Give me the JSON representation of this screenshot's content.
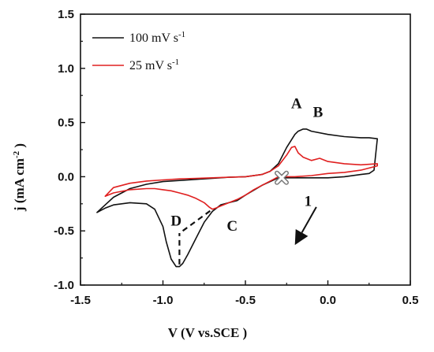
{
  "chart_data": {
    "type": "line",
    "xlabel": "V (V vs.SCE )",
    "ylabel_main": "j (mA cm",
    "ylabel_sup": "-2",
    "ylabel_end": " )",
    "xlim": [
      -1.5,
      0.5
    ],
    "ylim": [
      -1.0,
      1.5
    ],
    "x_ticks": [
      -1.5,
      -1.0,
      -0.5,
      0.0,
      0.5
    ],
    "x_tick_labels": [
      "-1.5",
      "-1.0",
      "-0.5",
      "0.0",
      "0.5"
    ],
    "y_ticks": [
      -1.0,
      -0.5,
      0.0,
      0.5,
      1.0,
      1.5
    ],
    "y_tick_labels": [
      "-1.0",
      "-0.5",
      "0.0",
      "0.5",
      "1.0",
      "1.5"
    ],
    "legend_position": "top-left",
    "series": [
      {
        "name_main": "100 mV s",
        "name_sup": "-1",
        "color": "#111111",
        "x": [
          -0.3,
          -0.4,
          -0.5,
          -0.55,
          -0.6,
          -0.65,
          -0.7,
          -0.75,
          -0.8,
          -0.85,
          -0.88,
          -0.9,
          -0.92,
          -0.95,
          -0.98,
          -1.0,
          -1.05,
          -1.1,
          -1.2,
          -1.3,
          -1.35,
          -1.4,
          -1.35,
          -1.3,
          -1.2,
          -1.1,
          -1.0,
          -0.9,
          -0.8,
          -0.7,
          -0.6,
          -0.5,
          -0.4,
          -0.35,
          -0.3,
          -0.25,
          -0.2,
          -0.18,
          -0.15,
          -0.13,
          -0.1,
          0.0,
          0.1,
          0.2,
          0.25,
          0.3,
          0.28,
          0.25,
          0.2,
          0.1,
          0.0,
          -0.1,
          -0.2,
          -0.3
        ],
        "y": [
          -0.01,
          -0.08,
          -0.17,
          -0.22,
          -0.24,
          -0.26,
          -0.32,
          -0.42,
          -0.57,
          -0.72,
          -0.8,
          -0.83,
          -0.83,
          -0.76,
          -0.6,
          -0.46,
          -0.3,
          -0.25,
          -0.24,
          -0.26,
          -0.29,
          -0.33,
          -0.26,
          -0.19,
          -0.11,
          -0.07,
          -0.045,
          -0.035,
          -0.025,
          -0.015,
          -0.005,
          0.0,
          0.02,
          0.05,
          0.12,
          0.27,
          0.39,
          0.42,
          0.44,
          0.44,
          0.42,
          0.39,
          0.37,
          0.36,
          0.36,
          0.35,
          0.06,
          0.03,
          0.02,
          0.0,
          -0.01,
          -0.01,
          -0.01,
          -0.01
        ]
      },
      {
        "name_main": "25 mV s",
        "name_sup": "-1",
        "color": "#e02020",
        "x": [
          -0.3,
          -0.35,
          -0.4,
          -0.45,
          -0.5,
          -0.55,
          -0.6,
          -0.65,
          -0.68,
          -0.7,
          -0.72,
          -0.75,
          -0.8,
          -0.85,
          -0.9,
          -0.95,
          -1.0,
          -1.05,
          -1.1,
          -1.2,
          -1.3,
          -1.35,
          -1.3,
          -1.2,
          -1.1,
          -1.0,
          -0.9,
          -0.8,
          -0.7,
          -0.6,
          -0.5,
          -0.4,
          -0.35,
          -0.3,
          -0.25,
          -0.22,
          -0.2,
          -0.18,
          -0.15,
          -0.1,
          -0.05,
          0.0,
          0.1,
          0.2,
          0.3,
          0.3,
          0.2,
          0.1,
          0.0,
          -0.1,
          -0.2,
          -0.3
        ],
        "y": [
          0.0,
          -0.04,
          -0.08,
          -0.12,
          -0.17,
          -0.21,
          -0.24,
          -0.27,
          -0.29,
          -0.3,
          -0.28,
          -0.24,
          -0.2,
          -0.17,
          -0.15,
          -0.13,
          -0.12,
          -0.11,
          -0.11,
          -0.12,
          -0.15,
          -0.18,
          -0.1,
          -0.06,
          -0.04,
          -0.03,
          -0.02,
          -0.015,
          -0.01,
          -0.005,
          0.0,
          0.02,
          0.05,
          0.1,
          0.2,
          0.27,
          0.28,
          0.22,
          0.18,
          0.15,
          0.17,
          0.14,
          0.12,
          0.11,
          0.12,
          0.1,
          0.06,
          0.04,
          0.03,
          0.01,
          0.0,
          0.0
        ]
      }
    ],
    "annotations": [
      {
        "text": "A",
        "x": -0.19,
        "y": 0.63
      },
      {
        "text": "B",
        "x": -0.06,
        "y": 0.55
      },
      {
        "text": "C",
        "x": -0.58,
        "y": -0.5
      },
      {
        "text": "D",
        "x": -0.92,
        "y": -0.45
      },
      {
        "text": "1",
        "x": -0.12,
        "y": -0.27
      }
    ],
    "dashed_guides": [
      {
        "from": [
          -0.9,
          -0.81
        ],
        "to": [
          -0.9,
          -0.52
        ]
      },
      {
        "from": [
          -0.88,
          -0.5
        ],
        "to": [
          -0.7,
          -0.3
        ]
      }
    ],
    "scan_start_marker": {
      "x": -0.28,
      "y": -0.01
    },
    "scan_arrow": {
      "from": [
        -0.07,
        -0.28
      ],
      "to": [
        -0.2,
        -0.63
      ]
    }
  }
}
